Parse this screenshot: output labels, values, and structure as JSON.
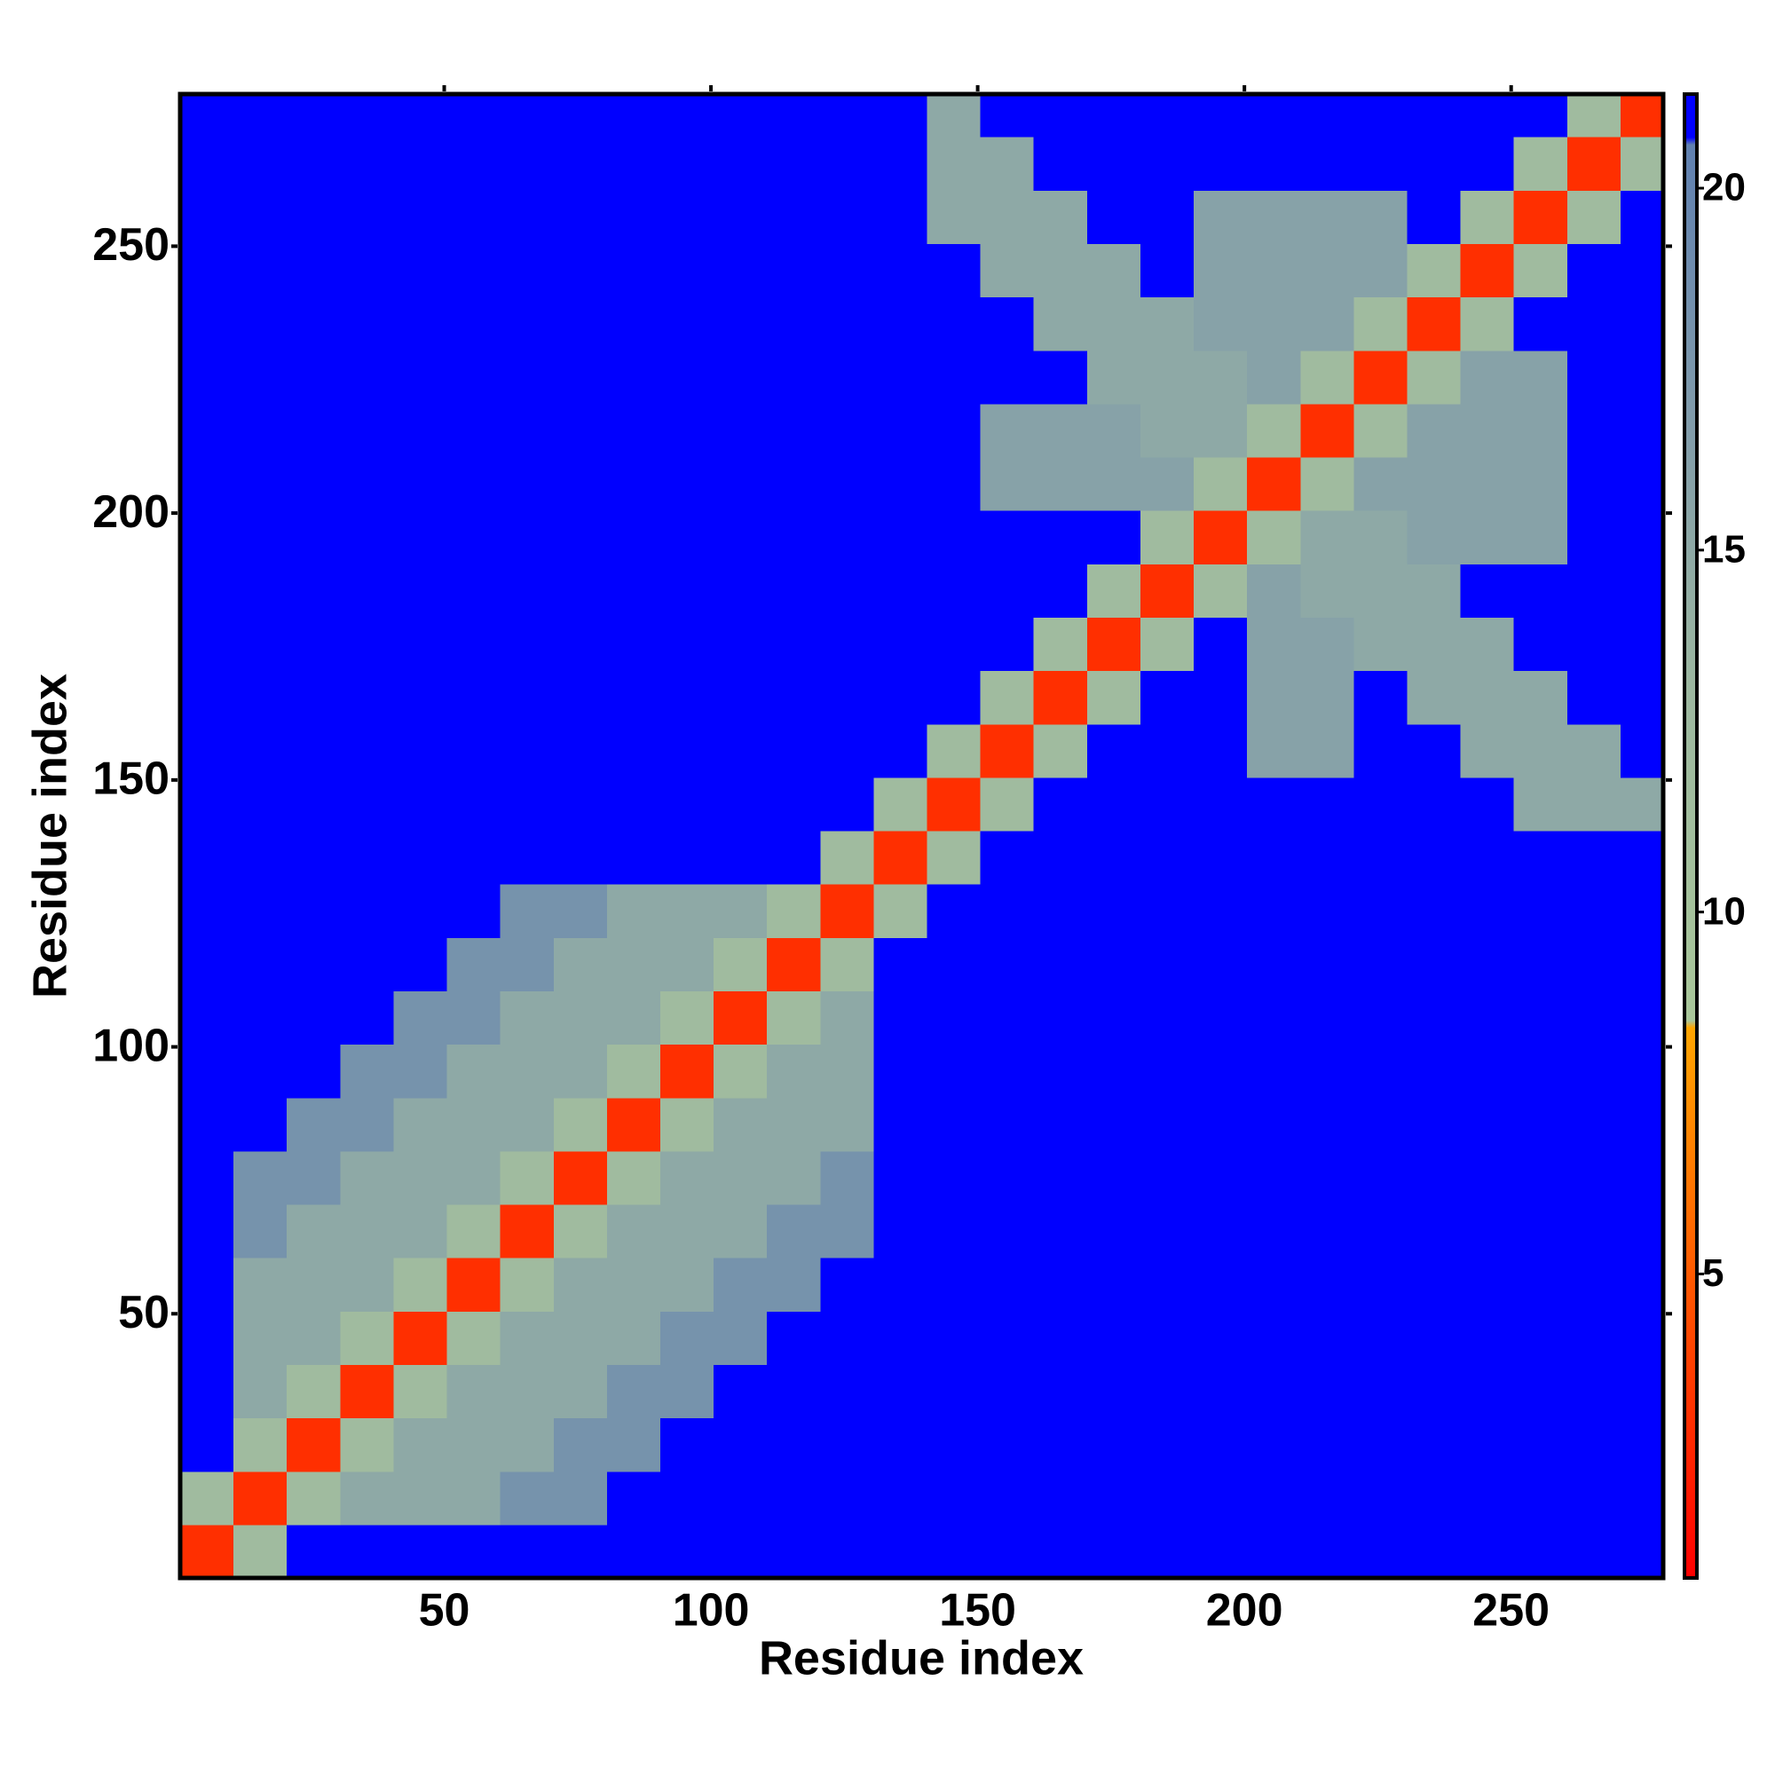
{
  "chart_data": {
    "type": "heatmap",
    "xlabel": "Residue index",
    "ylabel": "Residue index",
    "xlim": [
      0.5,
      278.5
    ],
    "ylim": [
      0.5,
      278.5
    ],
    "xticks": [
      50,
      100,
      150,
      200,
      250
    ],
    "yticks": [
      50,
      100,
      150,
      200,
      250
    ],
    "xbins": [
      0.5,
      10.5,
      20.5,
      30.5,
      40.5,
      50.5,
      60.5,
      70.5,
      80.5,
      90.5,
      100.5,
      110.5,
      120.5,
      130.5,
      140.5,
      150.5,
      160.5,
      170.5,
      180.5,
      190.5,
      200.5,
      210.5,
      220.5,
      230.5,
      240.5,
      250.5,
      260.5,
      270.5,
      278.5
    ],
    "ybins": [
      0.5,
      10.5,
      20.5,
      30.5,
      40.5,
      50.5,
      60.5,
      70.5,
      80.5,
      90.5,
      100.5,
      110.5,
      120.5,
      130.5,
      140.5,
      150.5,
      160.5,
      170.5,
      180.5,
      190.5,
      200.5,
      210.5,
      220.5,
      230.5,
      240.5,
      250.5,
      260.5,
      270.5,
      278.5
    ],
    "z": [
      [
        3,
        12,
        21,
        21,
        21,
        21,
        21,
        21,
        21,
        21,
        21,
        21,
        21,
        21,
        21,
        21,
        21,
        21,
        21,
        21,
        21,
        21,
        21,
        21,
        21,
        21,
        21,
        21
      ],
      [
        12,
        3,
        12,
        15,
        15,
        15,
        18,
        18,
        21,
        21,
        21,
        21,
        21,
        21,
        21,
        21,
        21,
        21,
        21,
        21,
        21,
        21,
        21,
        21,
        21,
        21,
        21,
        21
      ],
      [
        21,
        12,
        3,
        12,
        15,
        15,
        15,
        18,
        18,
        21,
        21,
        21,
        21,
        21,
        21,
        21,
        21,
        21,
        21,
        21,
        21,
        21,
        21,
        21,
        21,
        21,
        21,
        21
      ],
      [
        21,
        15,
        12,
        3,
        12,
        15,
        15,
        15,
        18,
        18,
        21,
        21,
        21,
        21,
        21,
        21,
        21,
        21,
        21,
        21,
        21,
        21,
        21,
        21,
        21,
        21,
        21,
        21
      ],
      [
        21,
        15,
        15,
        12,
        3,
        12,
        15,
        15,
        15,
        18,
        18,
        21,
        21,
        21,
        21,
        21,
        21,
        21,
        21,
        21,
        21,
        21,
        21,
        21,
        21,
        21,
        21,
        21
      ],
      [
        21,
        15,
        15,
        15,
        12,
        3,
        12,
        15,
        15,
        15,
        18,
        18,
        21,
        21,
        21,
        21,
        21,
        21,
        21,
        21,
        21,
        21,
        21,
        21,
        21,
        21,
        21,
        21
      ],
      [
        21,
        18,
        15,
        15,
        15,
        12,
        3,
        12,
        15,
        15,
        15,
        18,
        18,
        21,
        21,
        21,
        21,
        21,
        21,
        21,
        21,
        21,
        21,
        21,
        21,
        21,
        21,
        21
      ],
      [
        21,
        18,
        18,
        15,
        15,
        15,
        12,
        3,
        12,
        15,
        15,
        15,
        18,
        21,
        21,
        21,
        21,
        21,
        21,
        21,
        21,
        21,
        21,
        21,
        21,
        21,
        21,
        21
      ],
      [
        21,
        21,
        18,
        18,
        15,
        15,
        15,
        12,
        3,
        12,
        15,
        15,
        15,
        21,
        21,
        21,
        21,
        21,
        21,
        21,
        21,
        21,
        21,
        21,
        21,
        21,
        21,
        21
      ],
      [
        21,
        21,
        21,
        18,
        18,
        15,
        15,
        15,
        12,
        3,
        12,
        15,
        15,
        21,
        21,
        21,
        21,
        21,
        21,
        21,
        21,
        21,
        21,
        21,
        21,
        21,
        21,
        21
      ],
      [
        21,
        21,
        21,
        21,
        18,
        18,
        15,
        15,
        15,
        12,
        3,
        12,
        15,
        21,
        21,
        21,
        21,
        21,
        21,
        21,
        21,
        21,
        21,
        21,
        21,
        21,
        21,
        21
      ],
      [
        21,
        21,
        21,
        21,
        21,
        18,
        18,
        15,
        15,
        15,
        12,
        3,
        12,
        21,
        21,
        21,
        21,
        21,
        21,
        21,
        21,
        21,
        21,
        21,
        21,
        21,
        21,
        21
      ],
      [
        21,
        21,
        21,
        21,
        21,
        21,
        18,
        18,
        15,
        15,
        15,
        12,
        3,
        12,
        21,
        21,
        21,
        21,
        21,
        21,
        21,
        21,
        21,
        21,
        21,
        21,
        21,
        21
      ],
      [
        21,
        21,
        21,
        21,
        21,
        21,
        21,
        21,
        21,
        21,
        21,
        21,
        12,
        3,
        12,
        21,
        21,
        21,
        21,
        21,
        21,
        21,
        21,
        21,
        21,
        21,
        21,
        21
      ],
      [
        21,
        21,
        21,
        21,
        21,
        21,
        21,
        21,
        21,
        21,
        21,
        21,
        21,
        12,
        3,
        12,
        21,
        21,
        21,
        21,
        21,
        21,
        21,
        21,
        21,
        15,
        15,
        15
      ],
      [
        21,
        21,
        21,
        21,
        21,
        21,
        21,
        21,
        21,
        21,
        21,
        21,
        21,
        21,
        12,
        3,
        12,
        21,
        21,
        21,
        16,
        16,
        21,
        21,
        15,
        15,
        15,
        21
      ],
      [
        21,
        21,
        21,
        21,
        21,
        21,
        21,
        21,
        21,
        21,
        21,
        21,
        21,
        21,
        21,
        12,
        3,
        12,
        21,
        21,
        16,
        16,
        21,
        15,
        15,
        15,
        21,
        21
      ],
      [
        21,
        21,
        21,
        21,
        21,
        21,
        21,
        21,
        21,
        21,
        21,
        21,
        21,
        21,
        21,
        21,
        12,
        3,
        12,
        21,
        16,
        16,
        15,
        15,
        15,
        21,
        21,
        21
      ],
      [
        21,
        21,
        21,
        21,
        21,
        21,
        21,
        21,
        21,
        21,
        21,
        21,
        21,
        21,
        21,
        21,
        21,
        12,
        3,
        12,
        16,
        15,
        15,
        15,
        21,
        21,
        21,
        21
      ],
      [
        21,
        21,
        21,
        21,
        21,
        21,
        21,
        21,
        21,
        21,
        21,
        21,
        21,
        21,
        21,
        21,
        21,
        21,
        12,
        3,
        12,
        15,
        15,
        16,
        16,
        16,
        21,
        21
      ],
      [
        21,
        21,
        21,
        21,
        21,
        21,
        21,
        21,
        21,
        21,
        21,
        21,
        21,
        21,
        21,
        16,
        16,
        16,
        16,
        12,
        3,
        12,
        16,
        16,
        16,
        16,
        21,
        21
      ],
      [
        21,
        21,
        21,
        21,
        21,
        21,
        21,
        21,
        21,
        21,
        21,
        21,
        21,
        21,
        21,
        16,
        16,
        16,
        15,
        15,
        12,
        3,
        12,
        16,
        16,
        16,
        21,
        21
      ],
      [
        21,
        21,
        21,
        21,
        21,
        21,
        21,
        21,
        21,
        21,
        21,
        21,
        21,
        21,
        21,
        21,
        21,
        15,
        15,
        15,
        16,
        12,
        3,
        12,
        16,
        16,
        21,
        21
      ],
      [
        21,
        21,
        21,
        21,
        21,
        21,
        21,
        21,
        21,
        21,
        21,
        21,
        21,
        21,
        21,
        21,
        15,
        15,
        15,
        16,
        16,
        16,
        12,
        3,
        12,
        21,
        21,
        21
      ],
      [
        21,
        21,
        21,
        21,
        21,
        21,
        21,
        21,
        21,
        21,
        21,
        21,
        21,
        21,
        21,
        15,
        15,
        15,
        21,
        16,
        16,
        16,
        16,
        12,
        3,
        12,
        21,
        21
      ],
      [
        21,
        21,
        21,
        21,
        21,
        21,
        21,
        21,
        21,
        21,
        21,
        21,
        21,
        21,
        15,
        15,
        15,
        21,
        21,
        16,
        16,
        16,
        16,
        21,
        12,
        3,
        12,
        21
      ],
      [
        21,
        21,
        21,
        21,
        21,
        21,
        21,
        21,
        21,
        21,
        21,
        21,
        21,
        21,
        15,
        15,
        21,
        21,
        21,
        21,
        21,
        21,
        21,
        21,
        21,
        12,
        3,
        12
      ],
      [
        21,
        21,
        21,
        21,
        21,
        21,
        21,
        21,
        21,
        21,
        21,
        21,
        21,
        21,
        15,
        21,
        21,
        21,
        21,
        21,
        21,
        21,
        21,
        21,
        21,
        21,
        12,
        3
      ]
    ],
    "zlim": [
      0.8,
      21.3
    ],
    "zticks": [
      5,
      10,
      15,
      20
    ],
    "colorscale": [
      [
        0.8,
        "#ff0000"
      ],
      [
        5,
        "#ff5a00"
      ],
      [
        8.4,
        "#ffa500"
      ],
      [
        8.5,
        "#a9c79a"
      ],
      [
        13,
        "#9db8a0"
      ],
      [
        17,
        "#7f9aab"
      ],
      [
        20.6,
        "#6080b0"
      ],
      [
        20.7,
        "#0000ff"
      ],
      [
        21.3,
        "#0000ff"
      ]
    ]
  }
}
